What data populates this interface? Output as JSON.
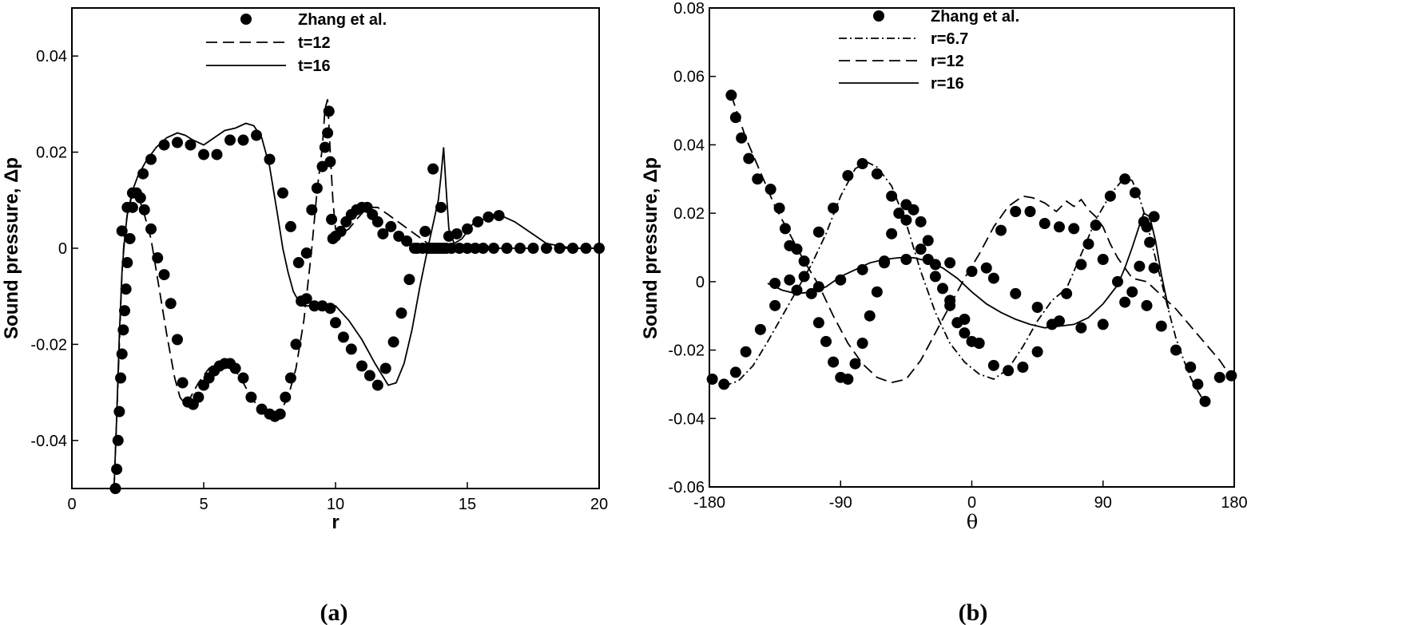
{
  "chart_data": [
    {
      "type": "line",
      "caption": "(a)",
      "title": "",
      "xlabel": "r",
      "ylabel": "Sound pressure, Δp",
      "xlim": [
        0,
        20
      ],
      "ylim": [
        -0.05,
        0.05
      ],
      "xticks": [
        "0",
        "5",
        "10",
        "15",
        "20"
      ],
      "yticks": [
        "-0.04",
        "-0.02",
        "0",
        "0.02",
        "0.04"
      ],
      "legend_position": "top-center",
      "legend": [
        {
          "label": "Zhang et al.",
          "style": "marker"
        },
        {
          "label": "t=12",
          "style": "dashed"
        },
        {
          "label": "t=16",
          "style": "solid"
        }
      ],
      "series": [
        {
          "name": "t=12",
          "style": "dashed",
          "x": [
            1.6,
            1.7,
            1.8,
            1.9,
            2.0,
            2.1,
            2.3,
            2.5,
            2.7,
            3.0,
            3.3,
            3.6,
            3.9,
            4.1,
            4.3,
            4.5,
            4.8,
            5.2,
            5.6,
            6.0,
            6.4,
            6.8,
            7.2,
            7.6,
            7.9,
            8.2,
            8.5,
            8.8,
            9.1,
            9.3,
            9.5,
            9.6,
            9.7,
            9.8,
            9.9,
            10.0,
            10.2,
            10.5,
            10.8,
            11.2,
            11.6,
            12.0,
            12.5,
            13.0,
            13.5,
            14.0,
            14.5,
            15.0,
            16.0,
            17.0,
            18.0,
            19.0,
            20.0
          ],
          "y": [
            -0.05,
            -0.035,
            -0.02,
            -0.005,
            0.003,
            0.007,
            0.0115,
            0.011,
            0.008,
            0.002,
            -0.008,
            -0.018,
            -0.027,
            -0.031,
            -0.0325,
            -0.031,
            -0.028,
            -0.025,
            -0.0235,
            -0.024,
            -0.027,
            -0.031,
            -0.034,
            -0.035,
            -0.034,
            -0.031,
            -0.025,
            -0.015,
            0.0,
            0.012,
            0.021,
            0.029,
            0.031,
            0.02,
            0.01,
            0.004,
            0.003,
            0.004,
            0.006,
            0.0085,
            0.0085,
            0.007,
            0.005,
            0.003,
            0.001,
            0.0005,
            0.0002,
            0.0,
            0.0,
            0.0,
            0.0,
            0.0,
            0.0
          ]
        },
        {
          "name": "t=16",
          "style": "solid",
          "x": [
            1.6,
            1.7,
            1.8,
            1.9,
            2.0,
            2.1,
            2.3,
            2.5,
            2.8,
            3.2,
            3.6,
            4.0,
            4.3,
            4.6,
            5.0,
            5.4,
            5.8,
            6.2,
            6.6,
            6.9,
            7.2,
            7.5,
            7.8,
            8.0,
            8.2,
            8.4,
            8.6,
            8.8,
            9.0,
            9.5,
            10.0,
            10.5,
            11.0,
            11.5,
            12.0,
            12.3,
            12.6,
            12.9,
            13.2,
            13.5,
            13.7,
            13.9,
            14.0,
            14.1,
            14.2,
            14.3,
            14.5,
            14.8,
            15.2,
            15.6,
            16.0,
            16.4,
            16.8,
            17.2,
            17.6,
            18.0,
            19.0,
            20.0
          ],
          "y": [
            -0.05,
            -0.035,
            -0.018,
            -0.005,
            0.002,
            0.007,
            0.012,
            0.015,
            0.018,
            0.021,
            0.023,
            0.024,
            0.0235,
            0.0225,
            0.0215,
            0.023,
            0.0245,
            0.025,
            0.026,
            0.0255,
            0.023,
            0.017,
            0.007,
            0.0,
            -0.005,
            -0.009,
            -0.011,
            -0.012,
            -0.012,
            -0.012,
            -0.012,
            -0.015,
            -0.019,
            -0.024,
            -0.0285,
            -0.028,
            -0.024,
            -0.017,
            -0.008,
            0.0,
            0.005,
            0.01,
            0.015,
            0.021,
            0.012,
            0.004,
            0.001,
            0.002,
            0.005,
            0.006,
            0.007,
            0.0065,
            0.0055,
            0.004,
            0.0025,
            0.001,
            0.0,
            0.0
          ]
        },
        {
          "name": "Zhang et al.",
          "style": "marker",
          "x": [
            1.65,
            1.7,
            1.75,
            1.8,
            1.85,
            1.9,
            1.95,
            2.0,
            2.05,
            2.1,
            2.2,
            2.3,
            2.45,
            2.6,
            2.75,
            3.0,
            3.25,
            3.5,
            3.75,
            4.0,
            4.2,
            4.4,
            4.6,
            4.8,
            5.0,
            5.2,
            5.4,
            5.6,
            5.8,
            6.0,
            6.2,
            6.5,
            6.8,
            7.2,
            7.5,
            7.7,
            7.9,
            8.1,
            8.3,
            8.5,
            8.7,
            8.9,
            9.1,
            9.3,
            9.5,
            9.6,
            9.7,
            9.75,
            9.8,
            9.85,
            9.9,
            10.0,
            10.2,
            10.4,
            10.6,
            10.8,
            11.0,
            11.2,
            11.4,
            11.6,
            11.8,
            12.1,
            12.4,
            12.7,
            13.0,
            13.3,
            13.5,
            13.6,
            13.7,
            13.8,
            13.9,
            14.0,
            14.1,
            14.2,
            14.4,
            14.7,
            15.0,
            15.3,
            15.6,
            16.0,
            16.5,
            17.0,
            17.5,
            18.0,
            18.5,
            19.0,
            19.5,
            20.0,
            1.9,
            2.1,
            2.3,
            2.7,
            3.0,
            3.5,
            4.0,
            4.5,
            5.0,
            5.5,
            6.0,
            6.5,
            7.0,
            7.5,
            8.0,
            8.3,
            8.6,
            8.9,
            9.2,
            9.5,
            9.8,
            10.0,
            10.3,
            10.6,
            11.0,
            11.3,
            11.6,
            11.9,
            12.2,
            12.5,
            12.8,
            13.1,
            13.4,
            13.7,
            14.0,
            14.3,
            14.6,
            15.0,
            15.4,
            15.8,
            16.2
          ],
          "y": [
            -0.05,
            -0.046,
            -0.04,
            -0.034,
            -0.027,
            -0.022,
            -0.017,
            -0.013,
            -0.0085,
            -0.003,
            0.002,
            0.0085,
            0.0115,
            0.0105,
            0.008,
            0.004,
            -0.002,
            -0.0055,
            -0.0115,
            -0.019,
            -0.028,
            -0.032,
            -0.0325,
            -0.031,
            -0.0285,
            -0.027,
            -0.0255,
            -0.0245,
            -0.024,
            -0.024,
            -0.025,
            -0.027,
            -0.031,
            -0.0335,
            -0.0345,
            -0.035,
            -0.0345,
            -0.031,
            -0.027,
            -0.02,
            -0.011,
            -0.001,
            0.008,
            0.0125,
            0.017,
            0.021,
            0.024,
            0.0285,
            0.018,
            0.006,
            0.002,
            0.0025,
            0.0035,
            0.0055,
            0.007,
            0.008,
            0.0085,
            0.0085,
            0.007,
            0.0055,
            0.003,
            0.0045,
            0.0025,
            0.0015,
            0.0,
            0.0,
            0.0,
            0.0,
            0.0,
            0.0,
            0.0,
            0.0,
            0.0,
            0.0,
            0.0,
            0.0,
            0.0,
            0.0,
            0.0,
            0.0,
            0.0,
            0.0,
            0.0,
            0.0,
            0.0,
            0.0,
            0.0,
            0.0,
            0.0036,
            0.0085,
            0.0115,
            0.0155,
            0.0185,
            0.0215,
            0.022,
            0.0215,
            0.0195,
            0.0195,
            0.0225,
            0.0225,
            0.0235,
            0.0185,
            0.0115,
            0.0045,
            -0.003,
            -0.0105,
            -0.012,
            -0.012,
            -0.0125,
            -0.0155,
            -0.0185,
            -0.021,
            -0.0245,
            -0.0265,
            -0.0285,
            -0.025,
            -0.0195,
            -0.0135,
            -0.0065,
            0.0,
            0.0035,
            0.0165,
            0.0085,
            0.0025,
            0.003,
            0.004,
            0.0055,
            0.0065,
            0.0068
          ]
        }
      ]
    },
    {
      "type": "line",
      "caption": "(b)",
      "title": "",
      "xlabel": "θ",
      "ylabel": "Sound pressure, Δp",
      "xlim": [
        -180,
        180
      ],
      "ylim": [
        -0.06,
        0.08
      ],
      "xticks": [
        "-180",
        "-90",
        "0",
        "90",
        "180"
      ],
      "yticks": [
        "-0.06",
        "-0.04",
        "-0.02",
        "0",
        "0.02",
        "0.04",
        "0.06",
        "0.08"
      ],
      "legend_position": "top-center",
      "legend": [
        {
          "label": "Zhang et al.",
          "style": "marker"
        },
        {
          "label": "r=6.7",
          "style": "dashdot"
        },
        {
          "label": "r=12",
          "style": "dashed"
        },
        {
          "label": "r=16",
          "style": "solid"
        }
      ],
      "series": [
        {
          "name": "r=6.7",
          "style": "dashdot",
          "x": [
            -180,
            -170,
            -160,
            -150,
            -140,
            -130,
            -120,
            -110,
            -100,
            -90,
            -80,
            -72,
            -65,
            -55,
            -45,
            -35,
            -25,
            -15,
            -5,
            5,
            15,
            25,
            35,
            45,
            55,
            65,
            75,
            85,
            95,
            105,
            110,
            115,
            120,
            125,
            130,
            135,
            140,
            145,
            150,
            155,
            160
          ],
          "y": [
            -0.0285,
            -0.0305,
            -0.029,
            -0.0245,
            -0.0175,
            -0.01,
            -0.0025,
            0.005,
            0.014,
            0.025,
            0.033,
            0.035,
            0.0335,
            0.028,
            0.017,
            0.003,
            -0.009,
            -0.018,
            -0.0235,
            -0.027,
            -0.0285,
            -0.0255,
            -0.019,
            -0.0115,
            -0.0055,
            -0.002,
            0.008,
            0.018,
            0.0255,
            0.0305,
            0.0295,
            0.0245,
            0.0175,
            0.0085,
            0.0,
            -0.0085,
            -0.0165,
            -0.0225,
            -0.028,
            -0.032,
            -0.0355
          ]
        },
        {
          "name": "r=12",
          "style": "dashed",
          "x": [
            -165,
            -155,
            -145,
            -135,
            -125,
            -115,
            -105,
            -95,
            -85,
            -75,
            -65,
            -55,
            -45,
            -35,
            -25,
            -15,
            -5,
            5,
            15,
            25,
            35,
            42,
            50,
            58,
            65,
            70,
            75,
            80,
            85,
            90,
            95,
            100,
            105,
            110,
            115,
            120,
            130,
            140,
            150,
            160,
            170,
            178
          ],
          "y": [
            0.0545,
            0.042,
            0.032,
            0.022,
            0.014,
            0.006,
            -0.001,
            -0.01,
            -0.018,
            -0.024,
            -0.028,
            -0.0295,
            -0.0285,
            -0.023,
            -0.015,
            -0.007,
            0.001,
            0.008,
            0.016,
            0.022,
            0.025,
            0.0245,
            0.023,
            0.0205,
            0.0235,
            0.022,
            0.024,
            0.021,
            0.019,
            0.016,
            0.011,
            0.007,
            0.004,
            0.001,
            0.0005,
            0.0,
            -0.004,
            -0.008,
            -0.013,
            -0.018,
            -0.023,
            -0.028
          ]
        },
        {
          "name": "r=16",
          "style": "solid",
          "x": [
            -140,
            -130,
            -120,
            -110,
            -100,
            -90,
            -80,
            -70,
            -60,
            -50,
            -40,
            -30,
            -20,
            -10,
            0,
            10,
            20,
            30,
            40,
            50,
            60,
            70,
            80,
            90,
            100,
            105,
            110,
            115,
            118,
            122,
            126,
            130,
            135
          ],
          "y": [
            -0.0005,
            -0.0025,
            -0.0035,
            -0.003,
            -0.0015,
            0.0015,
            0.0035,
            0.0055,
            0.0065,
            0.007,
            0.007,
            0.006,
            0.004,
            0.001,
            -0.003,
            -0.0065,
            -0.009,
            -0.011,
            -0.0125,
            -0.0135,
            -0.013,
            -0.0125,
            -0.0105,
            -0.0065,
            -0.001,
            0.004,
            0.01,
            0.0165,
            0.02,
            0.019,
            0.012,
            0.002,
            -0.008
          ]
        },
        {
          "name": "Zhang et al.",
          "style": "marker",
          "x": [
            -165,
            -162,
            -158,
            -153,
            -147,
            -138,
            -132,
            -128,
            -125,
            -120,
            -115,
            -110,
            -105,
            -100,
            -95,
            -90,
            -85,
            -80,
            -75,
            -70,
            -65,
            -60,
            -55,
            -50,
            -45,
            -40,
            -35,
            -30,
            -25,
            -20,
            -15,
            -10,
            -5,
            0,
            5,
            -178,
            -170,
            -162,
            -155,
            -145,
            -135,
            -125,
            -115,
            -105,
            -95,
            -85,
            -75,
            -65,
            -55,
            -45,
            -35,
            -25,
            -15,
            -5,
            5,
            15,
            25,
            35,
            45,
            55,
            65,
            75,
            85,
            95,
            105,
            112,
            118,
            122,
            125,
            -135,
            -120,
            -105,
            -90,
            -75,
            -60,
            -45,
            -30,
            -15,
            0,
            15,
            30,
            45,
            60,
            75,
            90,
            105,
            115,
            120,
            125,
            10,
            20,
            30,
            40,
            50,
            60,
            70,
            80,
            90,
            100,
            110,
            120,
            130,
            140,
            150,
            155,
            160,
            170,
            178
          ],
          "y": [
            0.0545,
            0.048,
            0.042,
            0.036,
            0.03,
            0.027,
            0.0215,
            0.0155,
            0.0105,
            0.0095,
            0.0015,
            -0.0035,
            -0.012,
            -0.0175,
            -0.0235,
            -0.028,
            -0.0285,
            -0.024,
            -0.018,
            -0.01,
            -0.003,
            0.006,
            0.014,
            0.02,
            0.0225,
            0.021,
            0.0175,
            0.012,
            0.005,
            -0.002,
            -0.007,
            -0.012,
            -0.015,
            -0.0175,
            -0.018,
            -0.0285,
            -0.03,
            -0.0265,
            -0.0205,
            -0.014,
            -0.007,
            0.0005,
            0.006,
            0.0145,
            0.0215,
            0.031,
            0.0345,
            0.0315,
            0.025,
            0.018,
            0.0095,
            0.0015,
            -0.0055,
            -0.011,
            -0.018,
            -0.0245,
            -0.026,
            -0.025,
            -0.0205,
            -0.0125,
            -0.0035,
            0.005,
            0.0165,
            0.025,
            0.03,
            0.026,
            0.0175,
            0.0115,
            0.004,
            -0.0005,
            -0.0025,
            -0.0015,
            0.0005,
            0.0035,
            0.0055,
            0.0065,
            0.0065,
            0.0055,
            0.003,
            0.001,
            -0.0035,
            -0.0075,
            -0.0115,
            -0.0135,
            -0.0125,
            -0.006,
            0.0045,
            0.016,
            0.019,
            0.004,
            0.015,
            0.0205,
            0.0205,
            0.017,
            0.016,
            0.0155,
            0.011,
            0.0065,
            0.0,
            -0.003,
            -0.007,
            -0.013,
            -0.02,
            -0.025,
            -0.03,
            -0.035,
            -0.028,
            -0.0275
          ]
        }
      ]
    }
  ]
}
